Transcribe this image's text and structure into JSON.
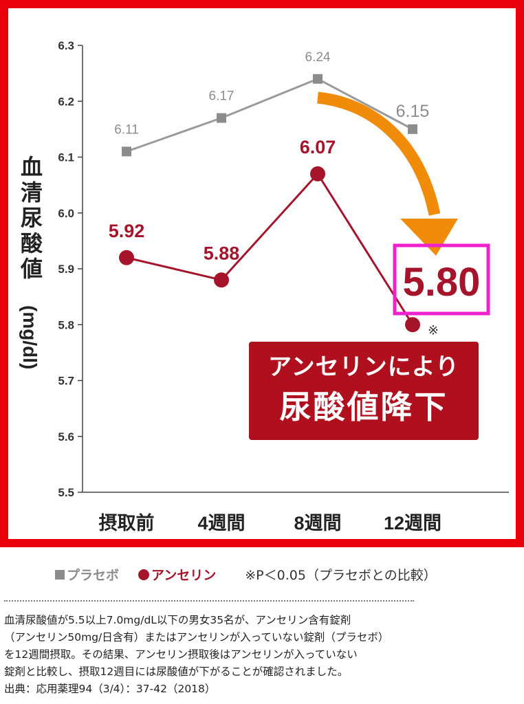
{
  "chart_data": {
    "type": "line",
    "categories": [
      "摂取前",
      "4週間",
      "8週間",
      "12週間"
    ],
    "series": [
      {
        "name": "プラセボ",
        "values": [
          6.11,
          6.17,
          6.24,
          6.15
        ],
        "labels": [
          "6.11",
          "6.17",
          "6.24",
          "6.15"
        ],
        "color": "#9a9a9a",
        "marker": "square"
      },
      {
        "name": "アンセリン",
        "values": [
          5.92,
          5.88,
          6.07,
          5.8
        ],
        "labels": [
          "5.92",
          "5.88",
          "6.07",
          "5.80"
        ],
        "color": "#a5142a",
        "marker": "circle"
      }
    ],
    "ylabel": "血清尿酸値(mg/dl)",
    "yticks": [
      "6.3",
      "6.2",
      "6.1",
      "6.0",
      "5.9",
      "5.8",
      "5.7",
      "5.6",
      "5.5"
    ],
    "ylim": [
      5.5,
      6.3
    ],
    "grid": false,
    "significance_mark": "※",
    "highlight_value": "5.80",
    "highlight_box_color": "#ee22cc",
    "arrow_color": "#f08c0a"
  },
  "callout": {
    "line1": "アンセリンにより",
    "line2": "尿酸値降下"
  },
  "legend": {
    "placebo": "プラセボ",
    "anserine": "アンセリン",
    "note": "※P＜0.05（プラセボとの比較）"
  },
  "description": {
    "lines": [
      "血清尿酸値が5.5以上7.0mg/dL以下の男女35名が、アンセリン含有錠剤",
      "（アンセリン50mg/日含有）またはアンセリンが入っていない錠剤（プラセボ）",
      "を12週間摂取。その結果、アンセリン摂取後はアンセリンが入っていない",
      "錠剤と比較し、摂取12週目には尿酸値が下がることが確認されました。",
      "出典：応用薬理94（3/4）：37-42（2018）"
    ]
  },
  "colors": {
    "frame": "#e8000c",
    "placebo": "#9a9a9a",
    "anserine": "#a5142a",
    "callout_bg": "#b0101e"
  }
}
